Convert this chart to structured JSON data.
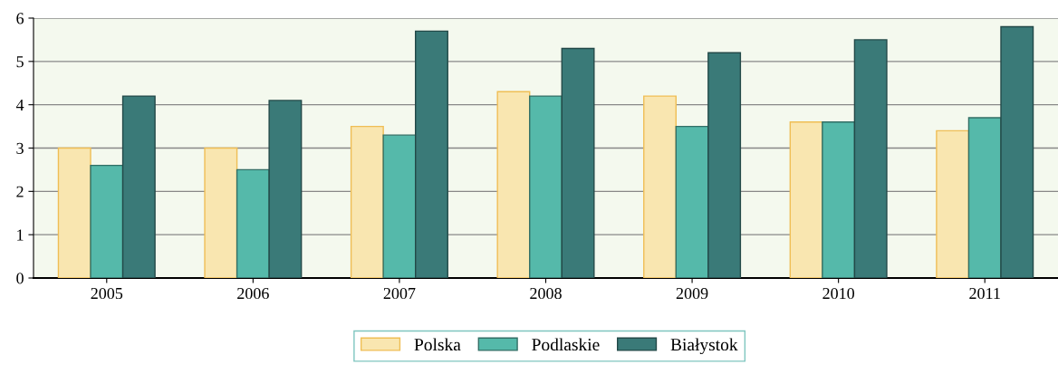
{
  "chart_data": {
    "type": "bar",
    "categories": [
      "2005",
      "2006",
      "2007",
      "2008",
      "2009",
      "2010",
      "2011"
    ],
    "series": [
      {
        "name": "Polska",
        "color": "#f9e6b0",
        "values": [
          3.0,
          3.0,
          3.5,
          4.3,
          4.2,
          3.6,
          3.4
        ]
      },
      {
        "name": "Podlaskie",
        "color": "#55b9aa",
        "values": [
          2.6,
          2.5,
          3.3,
          4.2,
          3.5,
          3.6,
          3.7
        ]
      },
      {
        "name": "Białystok",
        "color": "#3a7a78",
        "values": [
          4.2,
          4.1,
          5.7,
          5.3,
          5.2,
          5.5,
          5.8
        ]
      }
    ],
    "ylim": [
      0,
      6
    ],
    "yticks": [
      0,
      1,
      2,
      3,
      4,
      5,
      6
    ],
    "grid": "y",
    "legend": "bottom"
  }
}
